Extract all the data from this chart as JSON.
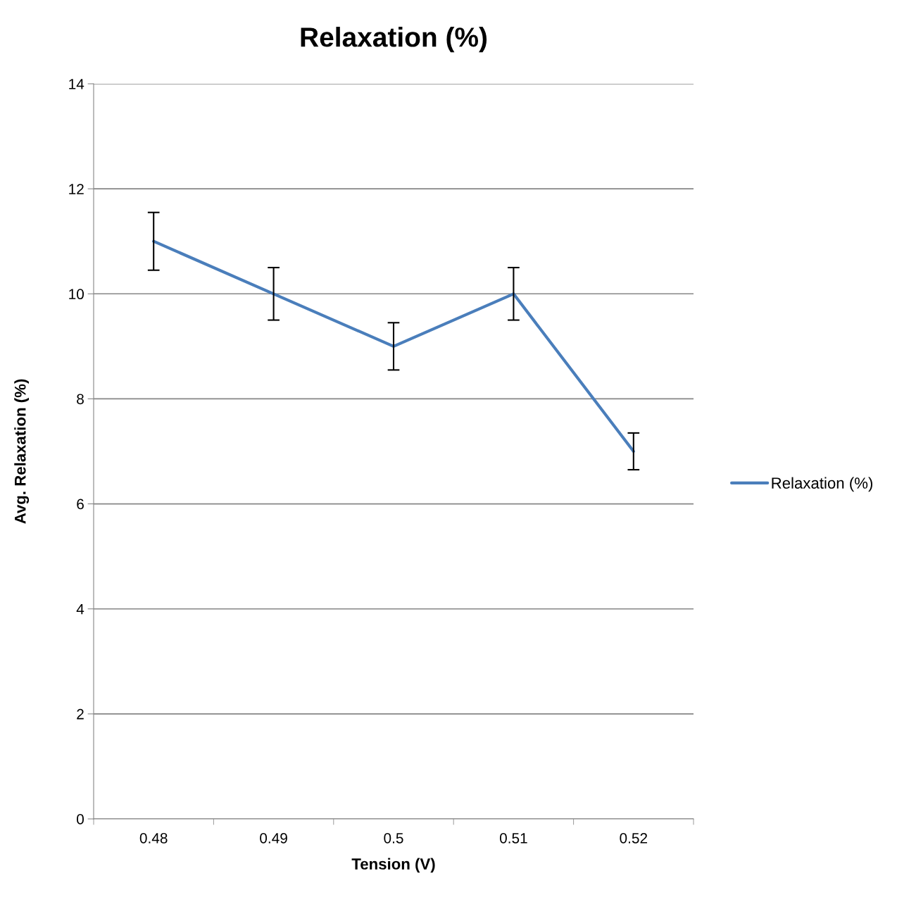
{
  "chart_data": {
    "type": "line",
    "title": "Relaxation (%)",
    "xlabel": "Tension (V)",
    "ylabel": "Avg. Relaxation (%)",
    "categories": [
      "0.48",
      "0.49",
      "0.5",
      "0.51",
      "0.52"
    ],
    "series": [
      {
        "name": "Relaxation (%)",
        "color": "#4a7ebb",
        "values": [
          11,
          10,
          9,
          10,
          7
        ],
        "errors": [
          0.55,
          0.5,
          0.45,
          0.5,
          0.35
        ]
      }
    ],
    "ylim": [
      0,
      14
    ],
    "yticks": [
      0,
      2,
      4,
      6,
      8,
      10,
      12,
      14
    ],
    "grid": "y",
    "legend": "right",
    "marker": "none",
    "line_style": "solid"
  }
}
